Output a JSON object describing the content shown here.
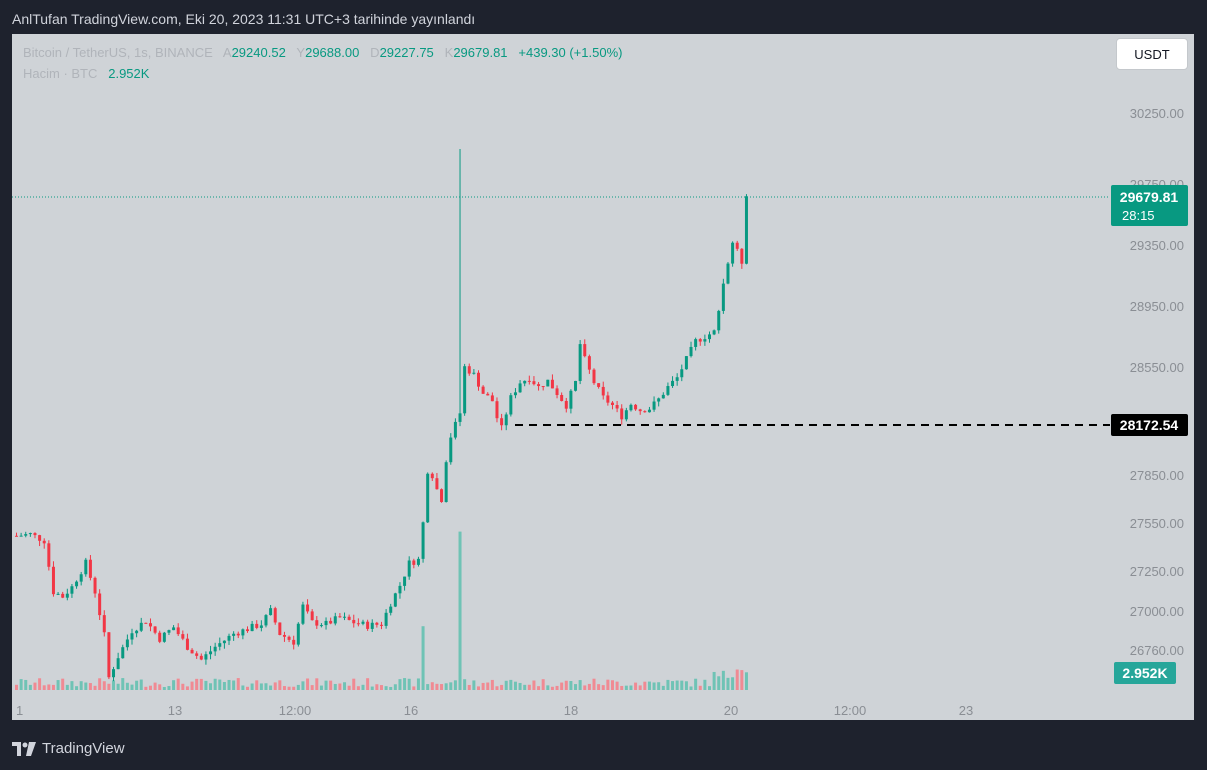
{
  "header": {
    "published_text": "AnlTufan TradingView.com, Eki 20, 2023 11:31 UTC+3 tarihinde yayınlandı"
  },
  "legend": {
    "symbol": "Bitcoin / TetherUS, 1s, BINANCE",
    "open_label": "A",
    "open_value": "29240.52",
    "high_label": "Y",
    "high_value": "29688.00",
    "low_label": "D",
    "low_value": "29227.75",
    "close_label": "K",
    "close_value": "29679.81",
    "change": "+439.30 (+1.50%)",
    "volume_label": "Hacim · BTC",
    "volume_value": "2.952K"
  },
  "currency_button": {
    "label": "USDT"
  },
  "price_badge": {
    "price": "29679.81",
    "countdown": "28:15"
  },
  "level_badge": {
    "price": "28172.54"
  },
  "volume_badge": {
    "value": "2.952K"
  },
  "footer": {
    "brand": "TradingView"
  },
  "colors": {
    "up": "#089981",
    "down": "#f23645",
    "background": "#cfd3d7",
    "level": "#000000"
  },
  "chart_data": {
    "type": "candlestick",
    "symbol": "Bitcoin / TetherUS",
    "interval": "1s",
    "exchange": "BINANCE",
    "y_tick_labels": [
      "30250.00",
      "29350.00",
      "28950.00",
      "28550.00",
      "27850.00",
      "27550.00",
      "27250.00",
      "27000.00",
      "26760.00"
    ],
    "x_tick_labels": [
      "1",
      "13",
      "12:00",
      "16",
      "18",
      "20",
      "12:00",
      "23"
    ],
    "horizontal_level": 28172.54,
    "last_price": 29679.81,
    "price_track": [
      [
        0,
        27470
      ],
      [
        3,
        27480
      ],
      [
        6,
        27440
      ],
      [
        8,
        27120
      ],
      [
        10,
        27090
      ],
      [
        12,
        27150
      ],
      [
        15,
        27300
      ],
      [
        17,
        27120
      ],
      [
        19,
        26850
      ],
      [
        20,
        26590
      ],
      [
        22,
        26720
      ],
      [
        25,
        26880
      ],
      [
        28,
        26940
      ],
      [
        31,
        26830
      ],
      [
        34,
        26900
      ],
      [
        37,
        26780
      ],
      [
        40,
        26700
      ],
      [
        43,
        26780
      ],
      [
        47,
        26860
      ],
      [
        50,
        26890
      ],
      [
        53,
        26920
      ],
      [
        55,
        27000
      ],
      [
        57,
        26860
      ],
      [
        60,
        26810
      ],
      [
        62,
        27030
      ],
      [
        64,
        26930
      ],
      [
        67,
        26920
      ],
      [
        70,
        26960
      ],
      [
        73,
        26930
      ],
      [
        76,
        26910
      ],
      [
        79,
        26920
      ],
      [
        81,
        27050
      ],
      [
        83,
        27160
      ],
      [
        85,
        27300
      ],
      [
        87,
        27320
      ],
      [
        88,
        27550
      ],
      [
        89,
        27880
      ],
      [
        90,
        27850
      ],
      [
        91,
        27760
      ],
      [
        92,
        27700
      ],
      [
        93,
        27950
      ],
      [
        94,
        28100
      ],
      [
        96,
        28250
      ],
      [
        97,
        28550
      ],
      [
        99,
        28500
      ],
      [
        101,
        28380
      ],
      [
        103,
        28330
      ],
      [
        104,
        28220
      ],
      [
        105,
        28150
      ],
      [
        107,
        28350
      ],
      [
        109,
        28450
      ],
      [
        111,
        28480
      ],
      [
        113,
        28420
      ],
      [
        115,
        28460
      ],
      [
        117,
        28380
      ],
      [
        119,
        28300
      ],
      [
        121,
        28450
      ],
      [
        122,
        28700
      ],
      [
        123,
        28600
      ],
      [
        125,
        28450
      ],
      [
        127,
        28350
      ],
      [
        129,
        28300
      ],
      [
        131,
        28230
      ],
      [
        133,
        28310
      ],
      [
        135,
        28270
      ],
      [
        137,
        28280
      ],
      [
        139,
        28340
      ],
      [
        141,
        28420
      ],
      [
        143,
        28480
      ],
      [
        145,
        28600
      ],
      [
        147,
        28720
      ],
      [
        149,
        28750
      ],
      [
        151,
        28780
      ],
      [
        153,
        29100
      ],
      [
        155,
        29370
      ],
      [
        157,
        29240
      ],
      [
        158,
        29680
      ]
    ],
    "spike": {
      "index": 96,
      "high": 30000
    },
    "volume_spikes": {
      "88": 2.9,
      "96": 7.2
    },
    "last_volume": "2.952K"
  }
}
